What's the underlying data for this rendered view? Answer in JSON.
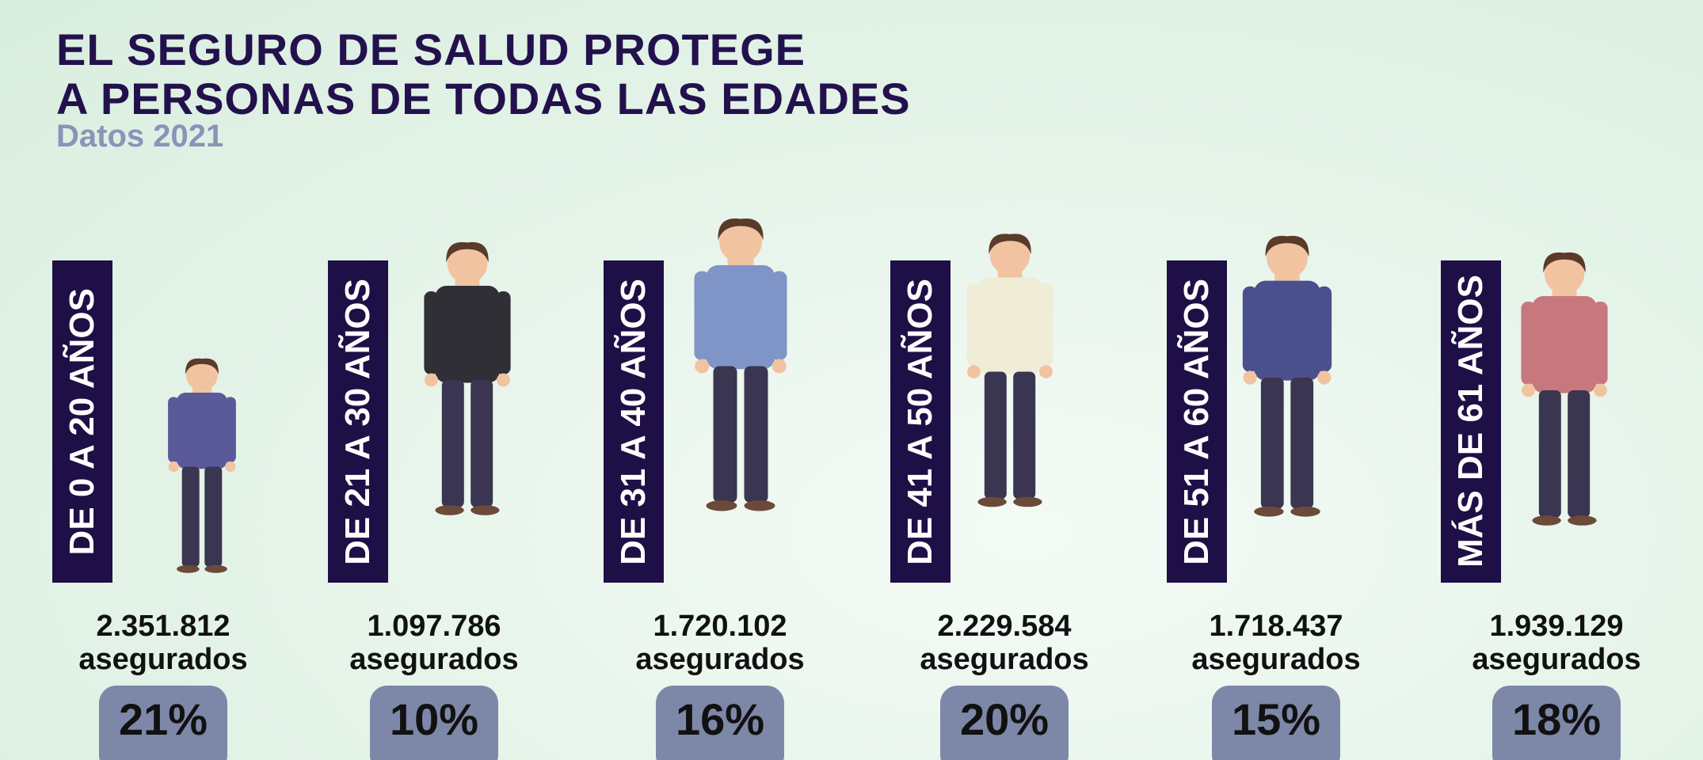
{
  "header": {
    "title_line1": "EL SEGURO DE SALUD PROTEGE",
    "title_line2": "A PERSONAS DE TODAS LAS EDADES",
    "subtitle": "Datos 2021"
  },
  "groups": [
    {
      "label": "DE 0 A 20 AÑOS",
      "count": "2.351.812",
      "unit": "asegurados",
      "percent": "21%"
    },
    {
      "label": "DE 21 A 30 AÑOS",
      "count": "1.097.786",
      "unit": "asegurados",
      "percent": "10%"
    },
    {
      "label": "DE 31 A 40 AÑOS",
      "count": "1.720.102",
      "unit": "asegurados",
      "percent": "16%"
    },
    {
      "label": "DE 41 A 50 AÑOS",
      "count": "2.229.584",
      "unit": "asegurados",
      "percent": "20%"
    },
    {
      "label": "DE 51 A 60 AÑOS",
      "count": "1.718.437",
      "unit": "asegurados",
      "percent": "15%"
    },
    {
      "label": "MÁS DE 61 AÑOS",
      "count": "1.939.129",
      "unit": "asegurados",
      "percent": "18%"
    }
  ]
}
